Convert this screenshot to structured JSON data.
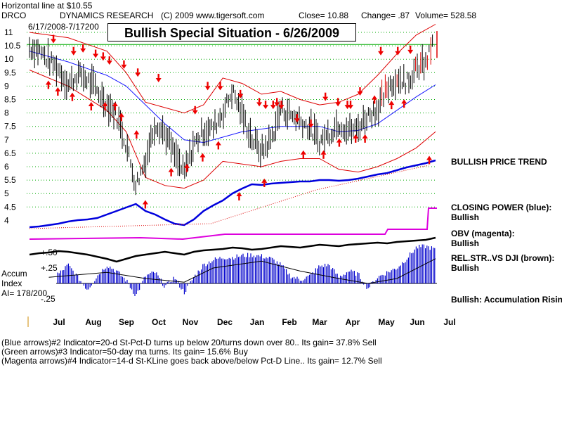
{
  "header": {
    "line_note": "Horizontal line at $10.55",
    "ticker": "DRCO",
    "company": "DYNAMICS RESEARCH",
    "copyright": "(C) 2009 www.tigersoft.com",
    "close": "Close=  10.88",
    "change": "Change= .87",
    "volume": "Volume= 528.58",
    "date_range": "6/17/2008-7/17200"
  },
  "title_box": "Bullish Special Situation - 6/26/2009",
  "accum": {
    "label1": "Accum",
    "label2": "Index",
    "ai": "AI= 178/200"
  },
  "annotations": {
    "price_trend": "BULLISH PRICE TREND",
    "closing_power": "CLOSING POWER (blue):",
    "closing_power_status": "Bullish",
    "obv": "OBV (magenta):",
    "obv_status": "Bullish",
    "relstr": "REL.STR..VS DJI (brown):",
    "relstr_status": "Bullish",
    "accum_rising": "Bullish: Accumulation Rising"
  },
  "footer": [
    "(Blue arrows)#2 Indicator=20-d St-Pct-D turns up below 20/turns down over 80.. Its gain= 37.8% Sell",
    "(Green arrows)#3 Indicator=50-day ma turns. Its gain= 15.6% Buy",
    "(Magenta arrows)#4 Indicator=14-d St-KLine goes back above/below Pct-D Line.. Its gain= 12.7% Sell"
  ],
  "colors": {
    "price": "#000000",
    "ma": "#1a1aff",
    "bands": "#dd0000",
    "arrows": "#ee0000",
    "grid": "#00aa00",
    "closing_power": "#0000dd",
    "obv": "#dd00dd",
    "relstr": "#000000",
    "accum": "#0000cc"
  },
  "chart_data": {
    "type": "line",
    "price_axis": {
      "ticks": [
        "11",
        "10.5",
        "10",
        "9.5",
        "9",
        "8.5",
        "8",
        "7.5",
        "7",
        "6.5",
        "6",
        "5.5",
        "5",
        "4.5",
        "4"
      ],
      "values": [
        11,
        10.5,
        10,
        9.5,
        9,
        8.5,
        8,
        7.5,
        7,
        6.5,
        6,
        5.5,
        5,
        4.5,
        4
      ],
      "ylim": [
        4,
        11
      ],
      "grid": true
    },
    "horizontal_line": 10.55,
    "months": [
      "Jul",
      "Aug",
      "Sep",
      "Oct",
      "Nov",
      "Dec",
      "Jan",
      "Feb",
      "Mar",
      "Apr",
      "May",
      "Jun",
      "Jul"
    ],
    "price_points": [
      [
        0,
        10.4
      ],
      [
        1,
        10.3
      ],
      [
        2,
        9.9
      ],
      [
        3,
        9.6
      ],
      [
        4,
        9.0
      ],
      [
        5,
        9.4
      ],
      [
        6,
        9.2
      ],
      [
        7,
        8.8
      ],
      [
        8,
        8.3
      ],
      [
        9,
        7.9
      ],
      [
        10,
        6.8
      ],
      [
        11,
        5.3
      ],
      [
        12,
        6.2
      ],
      [
        13,
        7.6
      ],
      [
        14,
        7.2
      ],
      [
        15,
        6.4
      ],
      [
        16,
        5.7
      ],
      [
        17,
        6.8
      ],
      [
        18,
        7.3
      ],
      [
        19,
        7.4
      ],
      [
        20,
        8.0
      ],
      [
        21,
        8.8
      ],
      [
        22,
        7.9
      ],
      [
        23,
        7.0
      ],
      [
        24,
        6.5
      ],
      [
        25,
        7.0
      ],
      [
        26,
        8.1
      ],
      [
        27,
        7.9
      ],
      [
        28,
        7.7
      ],
      [
        29,
        7.4
      ],
      [
        30,
        6.9
      ],
      [
        31,
        7.2
      ],
      [
        32,
        7.6
      ],
      [
        33,
        7.3
      ],
      [
        34,
        7.4
      ],
      [
        35,
        7.9
      ],
      [
        36,
        8.1
      ],
      [
        37,
        8.9
      ],
      [
        38,
        9.3
      ],
      [
        39,
        9.1
      ],
      [
        40,
        9.6
      ],
      [
        41,
        9.8
      ],
      [
        42,
        10.88
      ]
    ],
    "ma50_points": [
      [
        0,
        10.3
      ],
      [
        4,
        9.9
      ],
      [
        8,
        9.4
      ],
      [
        10,
        9.0
      ],
      [
        12,
        8.3
      ],
      [
        14,
        7.6
      ],
      [
        16,
        7.0
      ],
      [
        18,
        6.9
      ],
      [
        20,
        7.1
      ],
      [
        22,
        7.3
      ],
      [
        24,
        7.4
      ],
      [
        26,
        7.5
      ],
      [
        28,
        7.5
      ],
      [
        30,
        7.5
      ],
      [
        32,
        7.3
      ],
      [
        34,
        7.35
      ],
      [
        36,
        7.6
      ],
      [
        38,
        8.1
      ],
      [
        40,
        8.6
      ],
      [
        42,
        9.05
      ]
    ],
    "upper_band_points": [
      [
        0,
        11.0
      ],
      [
        4,
        10.8
      ],
      [
        8,
        10.3
      ],
      [
        10,
        9.5
      ],
      [
        12,
        8.4
      ],
      [
        14,
        8.2
      ],
      [
        16,
        8.0
      ],
      [
        18,
        8.3
      ],
      [
        20,
        9.3
      ],
      [
        22,
        9.1
      ],
      [
        24,
        8.7
      ],
      [
        26,
        8.8
      ],
      [
        28,
        8.5
      ],
      [
        30,
        8.3
      ],
      [
        32,
        8.4
      ],
      [
        34,
        8.7
      ],
      [
        36,
        9.4
      ],
      [
        38,
        10.2
      ],
      [
        40,
        10.9
      ],
      [
        42,
        11.3
      ]
    ],
    "lower_band_points": [
      [
        0,
        9.6
      ],
      [
        4,
        9.0
      ],
      [
        8,
        8.1
      ],
      [
        10,
        7.3
      ],
      [
        12,
        5.6
      ],
      [
        14,
        5.3
      ],
      [
        16,
        5.2
      ],
      [
        18,
        5.5
      ],
      [
        20,
        6.2
      ],
      [
        22,
        6.1
      ],
      [
        24,
        6.0
      ],
      [
        26,
        6.2
      ],
      [
        28,
        6.3
      ],
      [
        30,
        6.3
      ],
      [
        32,
        5.9
      ],
      [
        34,
        5.8
      ],
      [
        36,
        6.0
      ],
      [
        38,
        6.3
      ],
      [
        40,
        6.7
      ],
      [
        42,
        7.3
      ]
    ],
    "accum_axis": {
      "ticks": [
        "+.50",
        "+.25",
        "-.25"
      ],
      "values": [
        0.5,
        0.25,
        -0.25
      ]
    },
    "accum_points": [
      [
        0,
        0.05
      ],
      [
        1,
        0.2
      ],
      [
        2,
        0.25
      ],
      [
        3,
        0.15
      ],
      [
        4,
        0.3
      ],
      [
        5,
        0.1
      ],
      [
        6,
        -0.1
      ],
      [
        7,
        0.12
      ],
      [
        8,
        0.3
      ],
      [
        9,
        0.2
      ],
      [
        10,
        0.05
      ],
      [
        11,
        -0.2
      ],
      [
        12,
        0.12
      ],
      [
        13,
        0.18
      ],
      [
        14,
        -0.05
      ],
      [
        15,
        0.1
      ],
      [
        16,
        -0.15
      ],
      [
        17,
        0.1
      ],
      [
        18,
        0.3
      ],
      [
        19,
        0.38
      ],
      [
        20,
        0.42
      ],
      [
        21,
        0.42
      ],
      [
        22,
        0.45
      ],
      [
        23,
        0.46
      ],
      [
        24,
        0.44
      ],
      [
        25,
        0.4
      ],
      [
        26,
        0.3
      ],
      [
        27,
        0.12
      ],
      [
        28,
        0.06
      ],
      [
        29,
        0.12
      ],
      [
        30,
        0.28
      ],
      [
        31,
        0.3
      ],
      [
        32,
        0.1
      ],
      [
        33,
        0.2
      ],
      [
        34,
        0.15
      ],
      [
        35,
        -0.08
      ],
      [
        36,
        0.1
      ],
      [
        37,
        0.18
      ],
      [
        38,
        0.25
      ],
      [
        39,
        0.4
      ],
      [
        40,
        0.58
      ],
      [
        41,
        0.6
      ],
      [
        42,
        0.55
      ]
    ]
  }
}
